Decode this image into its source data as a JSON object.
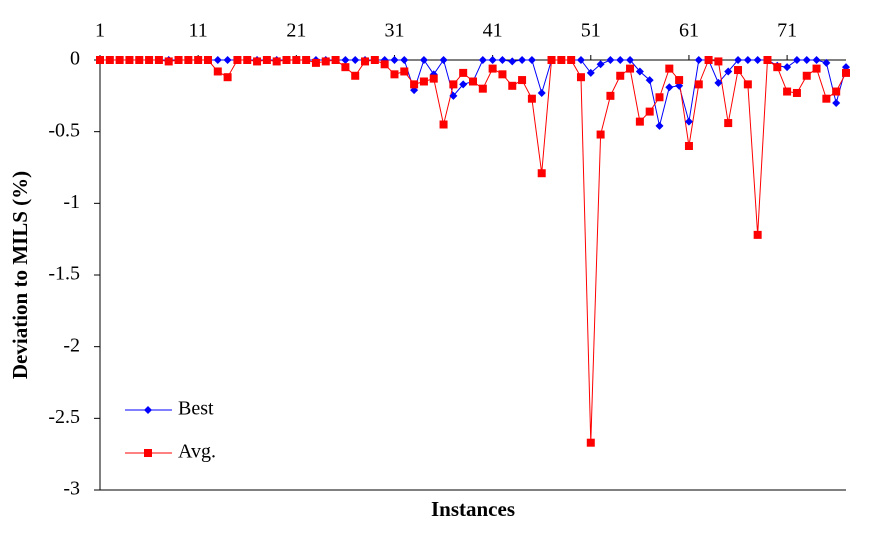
{
  "chart_data": {
    "type": "line",
    "ylabel": "Deviation to MILS (%)",
    "xlabel": "Instances",
    "x": [
      1,
      2,
      3,
      4,
      5,
      6,
      7,
      8,
      9,
      10,
      11,
      12,
      13,
      14,
      15,
      16,
      17,
      18,
      19,
      20,
      21,
      22,
      23,
      24,
      25,
      26,
      27,
      28,
      29,
      30,
      31,
      32,
      33,
      34,
      35,
      36,
      37,
      38,
      39,
      40,
      41,
      42,
      43,
      44,
      45,
      46,
      47,
      48,
      49,
      50,
      51,
      52,
      53,
      54,
      55,
      56,
      57,
      58,
      59,
      60,
      61,
      62,
      63,
      64,
      65,
      66,
      67,
      68,
      69,
      70,
      71,
      72,
      73,
      74,
      75,
      76,
      77
    ],
    "xlim": [
      1,
      77
    ],
    "xticks": [
      1,
      11,
      21,
      31,
      41,
      51,
      61,
      71
    ],
    "ylim": [
      -3,
      0
    ],
    "yticks": [
      0,
      -0.5,
      -1,
      -1.5,
      -2,
      -2.5,
      -3
    ],
    "legend": "lower-left",
    "series": [
      {
        "name": "Best",
        "color": "#0000ff",
        "marker": "diamond",
        "values": [
          0,
          0,
          0,
          0,
          0,
          0,
          0,
          0,
          0,
          0,
          0,
          0,
          0,
          0,
          0,
          0,
          0,
          0,
          0,
          0,
          0,
          0,
          0,
          0,
          0,
          0,
          0,
          0,
          0,
          0,
          0,
          0,
          -0.21,
          0,
          -0.1,
          0,
          -0.25,
          -0.17,
          -0.15,
          0,
          0,
          0,
          -0.01,
          0,
          0,
          -0.23,
          0,
          0,
          0,
          0,
          -0.09,
          -0.03,
          0,
          0,
          0,
          -0.08,
          -0.14,
          -0.46,
          -0.19,
          -0.18,
          -0.43,
          0,
          0,
          -0.16,
          -0.08,
          0,
          0,
          0,
          0,
          -0.04,
          -0.05,
          0,
          0,
          0,
          -0.02,
          -0.3,
          -0.05
        ]
      },
      {
        "name": "Avg.",
        "color": "#ff0000",
        "marker": "square",
        "values": [
          0,
          0,
          0,
          0,
          0,
          0,
          0,
          -0.01,
          0,
          0,
          0,
          0,
          -0.08,
          -0.12,
          0,
          0,
          -0.01,
          0,
          -0.01,
          0,
          0,
          0,
          -0.02,
          -0.01,
          0,
          -0.05,
          -0.11,
          -0.01,
          0,
          -0.03,
          -0.1,
          -0.08,
          -0.17,
          -0.15,
          -0.13,
          -0.45,
          -0.17,
          -0.09,
          -0.15,
          -0.2,
          -0.06,
          -0.1,
          -0.18,
          -0.14,
          -0.27,
          -0.79,
          0,
          0,
          0,
          -0.12,
          -2.67,
          -0.52,
          -0.25,
          -0.11,
          -0.06,
          -0.43,
          -0.36,
          -0.26,
          -0.06,
          -0.14,
          -0.6,
          -0.17,
          0,
          -0.01,
          -0.44,
          -0.07,
          -0.17,
          -1.22,
          0,
          -0.05,
          -0.22,
          -0.23,
          -0.11,
          -0.06,
          -0.27,
          -0.22,
          -0.09
        ]
      }
    ]
  }
}
